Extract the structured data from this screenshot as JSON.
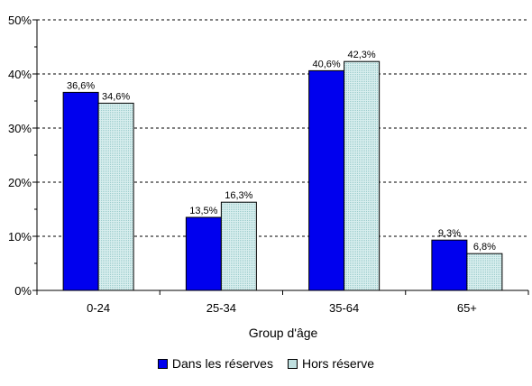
{
  "chart_data": {
    "type": "bar",
    "title": "",
    "xlabel": "Group d'âge",
    "ylabel": "",
    "categories": [
      "0-24",
      "25-34",
      "35-64",
      "65+"
    ],
    "series": [
      {
        "name": "Dans les réserves",
        "values": [
          36.6,
          13.5,
          40.6,
          9.3
        ],
        "labels": [
          "36,6%",
          "13,5%",
          "40,6%",
          "9,3%"
        ],
        "color": "#0000ee"
      },
      {
        "name": "Hors réserve",
        "values": [
          34.6,
          16.3,
          42.3,
          6.8
        ],
        "labels": [
          "34,6%",
          "16,3%",
          "42,3%",
          "6,8%"
        ],
        "color": "#cce6e6"
      }
    ],
    "y_ticks": [
      {
        "value": 0,
        "label": "0%"
      },
      {
        "value": 10,
        "label": "10%"
      },
      {
        "value": 20,
        "label": "20%"
      },
      {
        "value": 30,
        "label": "30%"
      },
      {
        "value": 40,
        "label": "40%"
      },
      {
        "value": 50,
        "label": "50%"
      }
    ],
    "ylim": [
      0,
      50
    ],
    "grid": true,
    "gridline_style": "dashed",
    "legend_position": "bottom"
  }
}
